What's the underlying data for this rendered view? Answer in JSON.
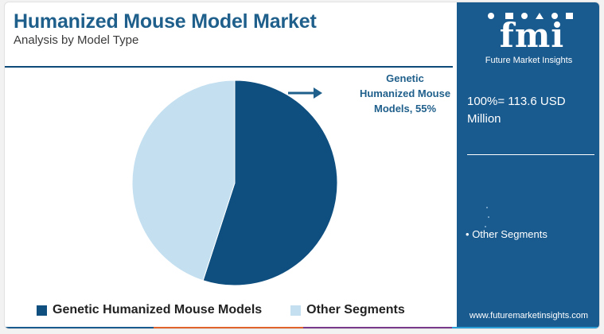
{
  "header": {
    "title": "Humanized Mouse Model Market",
    "subtitle": "Analysis by Model Type"
  },
  "chart_data": {
    "type": "pie",
    "title": "Humanized Mouse Model Market",
    "subtitle": "Analysis by Model Type",
    "slices": [
      {
        "label": "Genetic Humanized Mouse Models",
        "value": 55,
        "color": "#0e4f80"
      },
      {
        "label": "Other Segments",
        "value": 45,
        "color": "#c3dff0"
      }
    ],
    "data_labels": [
      "Genetic Humanized Mouse Models, 55%"
    ],
    "legend_placement": "bottom"
  },
  "callout": {
    "line1": "Genetic",
    "line2": "Humanized Mouse",
    "line3": "Models, 55%"
  },
  "legend": {
    "items": [
      {
        "label": "Genetic Humanized Mouse Models",
        "color": "#0e4f80"
      },
      {
        "label": "Other Segments",
        "color": "#c3dff0"
      }
    ]
  },
  "side_panel": {
    "logo": "fmi",
    "logo_subtitle": "Future Market Insights",
    "total_line1": "100%= 113.6 USD",
    "total_line2": "Million",
    "bullet": "•",
    "other_segments": "Other Segments",
    "website": "www.futuremarketinsights.com",
    "background": "#1a5b8f"
  },
  "stripe_colors": [
    "#1a5b8f",
    "#e0642b",
    "#7a3a8c",
    "#2b9fd8"
  ]
}
